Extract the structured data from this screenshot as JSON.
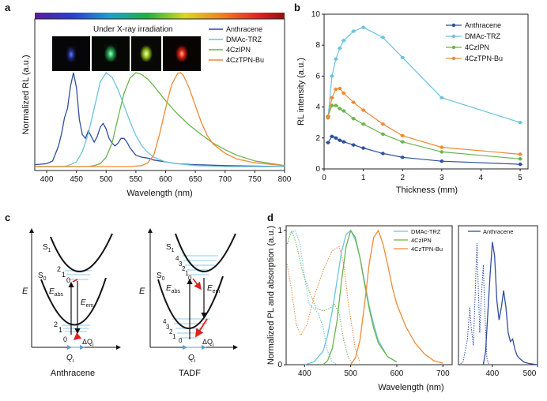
{
  "panel_labels": {
    "a": "a",
    "b": "b",
    "c": "c",
    "d": "d"
  },
  "inset_text": "Under X-ray irradiation",
  "colors": {
    "Anthracene": "#2f4f9e",
    "DMAc-TRZ": "#6cc3de",
    "4CzIPN": "#6cb44e",
    "4CzTPN-Bu": "#f08a34"
  },
  "chart_data": [
    {
      "panel": "a",
      "type": "line",
      "xlabel": "Wavelength (nm)",
      "ylabel": "Normalized RL (a.u.)",
      "xlim": [
        380,
        800
      ],
      "xticks": [
        400,
        450,
        500,
        550,
        600,
        650,
        700,
        750,
        800
      ],
      "ylim": [
        0,
        1.05
      ],
      "legend_position": "top-right",
      "series": [
        {
          "name": "Anthracene",
          "x": [
            380,
            400,
            410,
            420,
            425,
            430,
            435,
            440,
            445,
            450,
            455,
            460,
            465,
            470,
            475,
            480,
            485,
            490,
            495,
            500,
            505,
            510,
            515,
            520,
            525,
            530,
            535,
            540,
            550,
            560,
            570,
            580,
            600,
            620,
            650,
            700,
            800
          ],
          "y": [
            0.02,
            0.03,
            0.06,
            0.22,
            0.35,
            0.52,
            0.62,
            0.85,
            1.0,
            0.84,
            0.5,
            0.34,
            0.3,
            0.38,
            0.32,
            0.26,
            0.32,
            0.42,
            0.46,
            0.4,
            0.3,
            0.25,
            0.22,
            0.25,
            0.3,
            0.3,
            0.26,
            0.2,
            0.12,
            0.1,
            0.09,
            0.07,
            0.05,
            0.03,
            0.02,
            0.01,
            0.0
          ]
        },
        {
          "name": "DMAc-TRZ",
          "x": [
            380,
            430,
            440,
            450,
            460,
            470,
            480,
            490,
            500,
            510,
            520,
            530,
            540,
            550,
            560,
            570,
            580,
            600,
            620,
            650,
            700,
            800
          ],
          "y": [
            0.0,
            0.0,
            0.02,
            0.05,
            0.16,
            0.35,
            0.62,
            0.9,
            1.0,
            0.95,
            0.82,
            0.65,
            0.48,
            0.33,
            0.22,
            0.15,
            0.1,
            0.05,
            0.03,
            0.01,
            0.0,
            0.0
          ]
        },
        {
          "name": "4CzIPN",
          "x": [
            380,
            470,
            480,
            490,
            500,
            510,
            520,
            530,
            540,
            550,
            560,
            570,
            580,
            590,
            600,
            620,
            640,
            660,
            680,
            700,
            720,
            750,
            800
          ],
          "y": [
            0.0,
            0.0,
            0.01,
            0.03,
            0.1,
            0.25,
            0.52,
            0.78,
            0.94,
            1.0,
            0.98,
            0.93,
            0.86,
            0.78,
            0.7,
            0.56,
            0.44,
            0.34,
            0.25,
            0.18,
            0.12,
            0.06,
            0.01
          ]
        },
        {
          "name": "4CzTPN-Bu",
          "x": [
            380,
            540,
            560,
            570,
            580,
            590,
            600,
            610,
            620,
            625,
            630,
            640,
            650,
            660,
            670,
            680,
            700,
            720,
            750,
            800
          ],
          "y": [
            0.0,
            0.0,
            0.01,
            0.04,
            0.12,
            0.35,
            0.62,
            0.87,
            0.99,
            1.0,
            0.97,
            0.83,
            0.65,
            0.47,
            0.33,
            0.24,
            0.14,
            0.08,
            0.04,
            0.01
          ]
        }
      ]
    },
    {
      "panel": "b",
      "type": "line",
      "xlabel": "Thickness (mm)",
      "ylabel": "RL intensity (a.u.)",
      "xlim": [
        0,
        5.2
      ],
      "xticks": [
        0,
        1,
        2,
        3,
        4,
        5
      ],
      "ylim": [
        0,
        10
      ],
      "yticks": [
        0,
        2,
        4,
        6,
        8,
        10
      ],
      "legend_position": "top-right",
      "series": [
        {
          "name": "Anthracene",
          "x": [
            0.1,
            0.2,
            0.3,
            0.4,
            0.5,
            0.75,
            1.0,
            1.5,
            2.0,
            3.0,
            5.0
          ],
          "y": [
            1.7,
            2.1,
            2.0,
            1.85,
            1.75,
            1.55,
            1.35,
            1.0,
            0.75,
            0.5,
            0.3
          ]
        },
        {
          "name": "DMAc-TRZ",
          "x": [
            0.1,
            0.2,
            0.3,
            0.4,
            0.5,
            0.75,
            1.0,
            1.5,
            2.0,
            3.0,
            5.0
          ],
          "y": [
            3.3,
            6.0,
            7.1,
            7.8,
            8.3,
            8.9,
            9.15,
            8.5,
            7.2,
            4.6,
            3.0
          ]
        },
        {
          "name": "4CzIPN",
          "x": [
            0.1,
            0.2,
            0.3,
            0.4,
            0.5,
            0.75,
            1.0,
            1.5,
            2.0,
            3.0,
            5.0
          ],
          "y": [
            3.4,
            4.1,
            4.1,
            3.9,
            3.75,
            3.25,
            2.9,
            2.25,
            1.75,
            1.1,
            0.65
          ]
        },
        {
          "name": "4CzTPN-Bu",
          "x": [
            0.1,
            0.2,
            0.3,
            0.4,
            0.5,
            0.75,
            1.0,
            1.5,
            2.0,
            3.0,
            5.0
          ],
          "y": [
            3.3,
            4.6,
            5.15,
            5.2,
            4.9,
            4.3,
            3.8,
            2.9,
            2.15,
            1.4,
            0.95
          ]
        }
      ]
    },
    {
      "panel": "d",
      "type": "line",
      "xlabel": "Wavelength (nm)",
      "ylabel": "Normalized PL and absorption (a.u.)",
      "xlim": [
        360,
        720
      ],
      "xticks": [
        400,
        500,
        600,
        700
      ],
      "yticks": [
        0,
        1
      ],
      "legend_position": "top-right",
      "series": [
        {
          "name": "DMAc-TRZ",
          "x": [
            400,
            420,
            440,
            450,
            460,
            470,
            480,
            490,
            500,
            510,
            520,
            530,
            540,
            550,
            560,
            580,
            600
          ],
          "y": [
            0,
            0.02,
            0.1,
            0.22,
            0.4,
            0.62,
            0.84,
            0.97,
            1.0,
            0.93,
            0.8,
            0.62,
            0.44,
            0.3,
            0.18,
            0.06,
            0.02
          ]
        },
        {
          "name": "4CzIPN",
          "x": [
            440,
            450,
            460,
            470,
            480,
            490,
            500,
            510,
            520,
            530,
            540,
            550,
            560,
            580,
            600
          ],
          "y": [
            0,
            0.03,
            0.12,
            0.32,
            0.62,
            0.88,
            1.0,
            0.95,
            0.8,
            0.6,
            0.42,
            0.27,
            0.16,
            0.06,
            0.02
          ]
        },
        {
          "name": "4CzTPN-Bu",
          "x": [
            500,
            510,
            520,
            530,
            540,
            550,
            560,
            570,
            580,
            590,
            600,
            620,
            640,
            660,
            680,
            700
          ],
          "y": [
            0,
            0.05,
            0.18,
            0.45,
            0.75,
            0.95,
            1.0,
            0.9,
            0.75,
            0.58,
            0.45,
            0.28,
            0.16,
            0.08,
            0.03,
            0.01
          ]
        }
      ]
    },
    {
      "panel": "d-inset",
      "type": "line",
      "xlabel": "",
      "xlim": [
        325,
        500
      ],
      "xticks": [
        400,
        500
      ],
      "legend_position": "top-right",
      "series": [
        {
          "name": "Anthracene",
          "x": [
            380,
            385,
            390,
            395,
            400,
            405,
            410,
            415,
            420,
            425,
            430,
            435,
            440,
            445,
            450,
            455,
            460,
            470,
            480,
            500
          ],
          "y": [
            0,
            0.1,
            0.4,
            0.7,
            0.96,
            0.85,
            0.5,
            0.35,
            0.45,
            0.58,
            0.45,
            0.25,
            0.18,
            0.2,
            0.12,
            0.07,
            0.05,
            0.02,
            0.01,
            0.0
          ]
        }
      ]
    }
  ],
  "diagram_c": {
    "axis_label_E": "E",
    "state_S1": "S",
    "state_S1_sub": "1",
    "state_S0": "S",
    "state_S0_sub": "0",
    "eabs": "E",
    "eabs_sub": "abs",
    "eem": "E",
    "eem_sub": "em",
    "qi": "Q",
    "qi_sub": "i",
    "dqi": "ΔQ",
    "dqi_sub": "i",
    "left_caption": "Anthracene",
    "right_caption": "TADF",
    "left_levels_s1": [
      "2",
      "1",
      "0"
    ],
    "left_levels_s0": [
      "2",
      "1",
      "0"
    ],
    "right_levels_s1": [
      "4",
      "3",
      "2",
      "1",
      "0"
    ],
    "right_levels_s0": [
      "4",
      "3",
      "2",
      "1",
      "0"
    ]
  }
}
